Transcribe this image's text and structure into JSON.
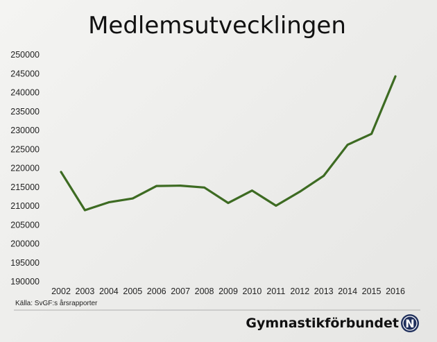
{
  "chart_data": {
    "type": "line",
    "title": "Medlemsutvecklingen",
    "xlabel": "",
    "ylabel": "",
    "categories": [
      "2002",
      "2003",
      "2004",
      "2005",
      "2006",
      "2007",
      "2008",
      "2009",
      "2010",
      "2011",
      "2012",
      "2013",
      "2014",
      "2015",
      "2016"
    ],
    "series": [
      {
        "values": [
          219000,
          208900,
          211000,
          212000,
          215300,
          215400,
          214900,
          210800,
          214100,
          210100,
          213800,
          218000,
          226200,
          229100,
          244300
        ],
        "color": "#3d6b22"
      }
    ],
    "ylim": [
      190000,
      250000
    ],
    "yticks": [
      190000,
      195000,
      200000,
      205000,
      210000,
      215000,
      220000,
      225000,
      230000,
      235000,
      240000,
      245000,
      250000
    ],
    "grid": false,
    "legend": "none"
  },
  "source": "Källa: SvGF:s årsrapporter",
  "brand": {
    "name": "Gymnastikförbundet",
    "logo_letter": "N"
  }
}
